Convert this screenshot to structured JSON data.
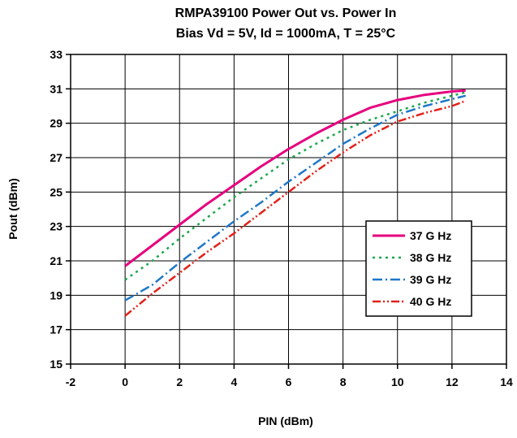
{
  "chart_data": {
    "type": "line",
    "title": "RMPA39100 Power Out vs. Power In",
    "subtitle": "Bias Vd = 5V, Id = 1000mA, T = 25°C",
    "xlabel": "PIN (dBm)",
    "ylabel": "Pout (dBm)",
    "xlim": [
      -2,
      14
    ],
    "ylim": [
      15,
      33
    ],
    "xticks": [
      -2,
      0,
      2,
      4,
      6,
      8,
      10,
      12,
      14
    ],
    "yticks": [
      15,
      17,
      19,
      21,
      23,
      25,
      27,
      29,
      31,
      33
    ],
    "grid": true,
    "legend_position": "right",
    "series": [
      {
        "name": "37 G Hz",
        "color": "#e6007e",
        "dash": "solid",
        "x": [
          0,
          1,
          2,
          3,
          4,
          5,
          6,
          7,
          8,
          9,
          10,
          11,
          12,
          12.5
        ],
        "y": [
          20.7,
          21.9,
          23.1,
          24.3,
          25.4,
          26.5,
          27.5,
          28.4,
          29.2,
          29.9,
          30.35,
          30.65,
          30.85,
          30.9
        ]
      },
      {
        "name": "38 G Hz",
        "color": "#1aa74a",
        "dash": "dot",
        "x": [
          0,
          1,
          2,
          3,
          4,
          5,
          6,
          7,
          8,
          9,
          10,
          11,
          12,
          12.5
        ],
        "y": [
          19.9,
          21.0,
          22.3,
          23.5,
          24.7,
          25.8,
          26.9,
          27.8,
          28.6,
          29.2,
          29.7,
          30.2,
          30.6,
          30.8
        ]
      },
      {
        "name": "39 G Hz",
        "color": "#1f77c8",
        "dash": "dashdot",
        "x": [
          0,
          1,
          2,
          3,
          4,
          5,
          6,
          7,
          8,
          9,
          10,
          11,
          12,
          12.5
        ],
        "y": [
          18.7,
          19.6,
          20.9,
          22.1,
          23.3,
          24.4,
          25.6,
          26.7,
          27.8,
          28.7,
          29.5,
          30.0,
          30.4,
          30.6
        ]
      },
      {
        "name": "40 G Hz",
        "color": "#e32119",
        "dash": "dashdotdot",
        "x": [
          0,
          1,
          2,
          3,
          4,
          5,
          6,
          7,
          8,
          9,
          10,
          11,
          12,
          12.5
        ],
        "y": [
          17.8,
          19.1,
          20.3,
          21.5,
          22.6,
          23.8,
          25.0,
          26.2,
          27.3,
          28.3,
          29.1,
          29.6,
          30.0,
          30.3
        ]
      }
    ]
  }
}
